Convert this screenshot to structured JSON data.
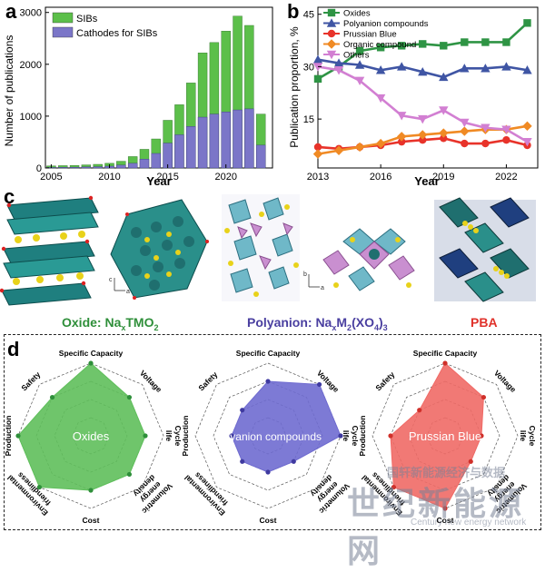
{
  "panels": {
    "a": "a",
    "b": "b",
    "c": "c",
    "d": "d"
  },
  "chart_data": [
    {
      "type": "bar",
      "panel": "a",
      "ylabel": "Number of publications",
      "xlabel": "Year",
      "xlim": [
        2004.5,
        2024
      ],
      "ylim": [
        0,
        3100
      ],
      "x_ticks": [
        2005,
        2010,
        2015,
        2020
      ],
      "y_ticks": [
        0,
        1000,
        2000,
        3000
      ],
      "legend_position": "top-left",
      "colors": {
        "SIBs": "#5cbf4a",
        "Cathodes for SIBs": "#7b76c8"
      },
      "x": [
        2005,
        2006,
        2007,
        2008,
        2009,
        2010,
        2011,
        2012,
        2013,
        2014,
        2015,
        2016,
        2017,
        2018,
        2019,
        2020,
        2021,
        2022,
        2023
      ],
      "series": [
        {
          "name": "SIBs",
          "values": [
            40,
            45,
            50,
            60,
            70,
            90,
            130,
            220,
            360,
            560,
            920,
            1220,
            1640,
            2220,
            2420,
            2640,
            2930,
            2750,
            1040
          ]
        },
        {
          "name": "Cathodes for SIBs",
          "values": [
            10,
            12,
            15,
            20,
            25,
            35,
            55,
            90,
            170,
            280,
            480,
            640,
            800,
            980,
            1040,
            1080,
            1120,
            1140,
            440
          ]
        }
      ]
    },
    {
      "type": "line",
      "panel": "b",
      "ylabel": "Publication proportion, %",
      "xlabel": "Year",
      "xlim": [
        2013,
        2023.5
      ],
      "ylim": [
        1,
        47
      ],
      "x_ticks": [
        2013,
        2016,
        2019,
        2022
      ],
      "y_ticks": [
        15,
        30,
        45
      ],
      "legend_position": "top-left",
      "x": [
        2013,
        2014,
        2015,
        2016,
        2017,
        2018,
        2019,
        2020,
        2021,
        2022,
        2023
      ],
      "series": [
        {
          "name": "Oxides",
          "color": "#2e9444",
          "marker": "square",
          "values": [
            26.5,
            30,
            34.5,
            35.5,
            36,
            36.5,
            36,
            37,
            37,
            37,
            42.5
          ]
        },
        {
          "name": "Polyanion compounds",
          "color": "#3f55a4",
          "marker": "triangle-up",
          "values": [
            32,
            31,
            30.5,
            29,
            30,
            28.5,
            27,
            29.5,
            29.5,
            30,
            29
          ]
        },
        {
          "name": "Prussian Blue",
          "color": "#e8332a",
          "marker": "circle",
          "values": [
            7,
            6.5,
            7,
            7.5,
            8.5,
            9,
            9.5,
            8,
            8,
            9,
            7.5
          ]
        },
        {
          "name": "Organic compound",
          "color": "#f08a24",
          "marker": "diamond",
          "values": [
            5,
            6,
            7,
            8,
            10,
            10.5,
            11,
            11.5,
            12,
            12,
            13
          ]
        },
        {
          "name": "Others",
          "color": "#d27fd2",
          "marker": "triangle-down",
          "values": [
            30,
            29,
            26,
            21,
            16,
            15,
            17.5,
            14,
            12.5,
            12,
            8.5
          ]
        }
      ]
    },
    {
      "type": "radar",
      "panel": "d",
      "axes": [
        "Specific Capacity",
        "Voltage",
        "Cycle life",
        "Volumetric energy density",
        "Cost",
        "Environmental friendliness",
        "Production",
        "Safety"
      ],
      "scale_max": 4,
      "series": [
        {
          "name": "Oxides",
          "color": "#5fbf5b",
          "values": [
            4,
            3,
            3,
            3,
            3,
            4,
            4,
            3
          ]
        },
        {
          "name": "Polyanion compounds",
          "color": "#6f6bd0",
          "values": [
            3,
            4,
            4,
            2,
            2,
            2,
            2,
            2
          ]
        },
        {
          "name": "Prussian Blue",
          "color": "#f06a66",
          "values": [
            4,
            3,
            2,
            2,
            4,
            4,
            3,
            2
          ]
        }
      ]
    }
  ],
  "panel_c": {
    "labels": [
      {
        "prefix": "Oxide: Na",
        "sub": "x",
        "middle": "TMO",
        "sub2": "2",
        "color": "#2f8f3a"
      },
      {
        "prefix": "Polyanion: Na",
        "sub": "x",
        "middle": "M",
        "sub2": "2",
        "tail": "(XO",
        "sub3": "4",
        "end": ")",
        "sub4": "3",
        "color": "#4a3fa0"
      },
      {
        "text": "PBA",
        "color": "#e0312a"
      }
    ],
    "axis_letters": [
      "c",
      "b",
      "a"
    ]
  },
  "watermark": {
    "line1": "国轩新能源经济与数据",
    "line2": "世纪新能源网",
    "line3": "Century new energy network"
  }
}
